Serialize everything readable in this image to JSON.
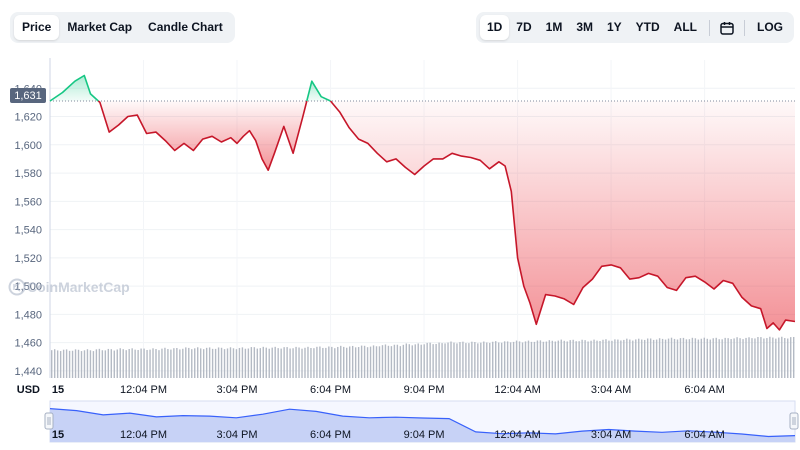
{
  "tabs": [
    {
      "label": "Price",
      "active": true
    },
    {
      "label": "Market Cap",
      "active": false
    },
    {
      "label": "Candle Chart",
      "active": false
    }
  ],
  "ranges": [
    {
      "label": "1D",
      "active": true
    },
    {
      "label": "7D",
      "active": false
    },
    {
      "label": "1M",
      "active": false
    },
    {
      "label": "3M",
      "active": false
    },
    {
      "label": "1Y",
      "active": false
    },
    {
      "label": "YTD",
      "active": false
    },
    {
      "label": "ALL",
      "active": false
    }
  ],
  "log_label": "LOG",
  "calendar_icon": "calendar-icon",
  "watermark": "CoinMarketCap",
  "currency_label": "USD",
  "current_price_label": "1,631",
  "colors": {
    "up": "#16c784",
    "down": "#c6172a",
    "fill_down": "#ea3943",
    "volume": "#b4bac4",
    "navigator_fill": "#c7d2f6",
    "navigator_line": "#3861fb"
  },
  "chart_data": {
    "type": "line",
    "ylabel": "",
    "xlabel": "",
    "ylim": [
      1435,
      1660
    ],
    "baseline": 1631,
    "x_ticks": [
      "15",
      "12:04 PM",
      "3:04 PM",
      "6:04 PM",
      "9:04 PM",
      "12:04 AM",
      "3:04 AM",
      "6:04 AM"
    ],
    "x_tick_hours": [
      0,
      3,
      6,
      9,
      12,
      15,
      18,
      21
    ],
    "y_ticks": [
      {
        "value": 1440,
        "label": "1,440"
      },
      {
        "value": 1460,
        "label": "1,460"
      },
      {
        "value": 1480,
        "label": "1,480"
      },
      {
        "value": 1500,
        "label": "1,500"
      },
      {
        "value": 1520,
        "label": "1,520"
      },
      {
        "value": 1540,
        "label": "1,540"
      },
      {
        "value": 1560,
        "label": "1,560"
      },
      {
        "value": 1580,
        "label": "1,580"
      },
      {
        "value": 1600,
        "label": "1,600"
      },
      {
        "value": 1620,
        "label": "1,620"
      },
      {
        "value": 1640,
        "label": "1,640"
      }
    ],
    "x_range_hours": [
      0,
      23.9
    ],
    "series": [
      {
        "x": [
          0.0,
          0.4,
          0.8,
          1.1,
          1.3,
          1.6,
          1.9,
          2.2,
          2.5,
          2.8,
          3.1,
          3.4,
          3.7,
          4.0,
          4.3,
          4.6,
          4.9,
          5.2,
          5.5,
          5.8,
          6.0,
          6.2,
          6.4,
          6.6,
          6.8,
          7.0,
          7.2,
          7.5,
          7.8,
          8.1,
          8.4,
          8.7,
          9.0,
          9.3,
          9.6,
          9.9,
          10.2,
          10.5,
          10.8,
          11.1,
          11.4,
          11.7,
          12.0,
          12.3,
          12.6,
          12.9,
          13.2,
          13.5,
          13.8,
          14.1,
          14.4,
          14.6,
          14.8,
          15.0,
          15.2,
          15.4,
          15.6,
          15.9,
          16.2,
          16.5,
          16.8,
          17.1,
          17.4,
          17.7,
          18.0,
          18.3,
          18.6,
          18.9,
          19.2,
          19.5,
          19.8,
          20.1,
          20.4,
          20.7,
          21.0,
          21.3,
          21.6,
          21.9,
          22.2,
          22.5,
          22.8,
          23.0,
          23.2,
          23.4,
          23.6,
          23.9
        ],
        "y": [
          1631,
          1637,
          1645,
          1649,
          1636,
          1630,
          1609,
          1614,
          1620,
          1621,
          1608,
          1609,
          1603,
          1596,
          1601,
          1596,
          1604,
          1606,
          1602,
          1605,
          1601,
          1606,
          1610,
          1603,
          1590,
          1582,
          1594,
          1613,
          1594,
          1619,
          1645,
          1634,
          1631,
          1623,
          1612,
          1604,
          1601,
          1594,
          1588,
          1590,
          1584,
          1579,
          1585,
          1590,
          1590,
          1594,
          1592,
          1591,
          1589,
          1583,
          1588,
          1585,
          1567,
          1520,
          1500,
          1488,
          1473,
          1494,
          1493,
          1491,
          1487,
          1499,
          1505,
          1514,
          1515,
          1513,
          1505,
          1506,
          1509,
          1507,
          1499,
          1497,
          1506,
          1507,
          1503,
          1498,
          1504,
          1502,
          1492,
          1486,
          1484,
          1470,
          1474,
          1469,
          1476,
          1475
        ]
      }
    ],
    "volume": [
      0.58,
      0.58,
      0.59,
      0.6,
      0.6,
      0.61,
      0.62,
      0.62,
      0.62,
      0.63,
      0.63,
      0.63,
      0.64,
      0.65,
      0.66,
      0.68,
      0.7,
      0.72,
      0.74,
      0.74,
      0.75,
      0.76,
      0.77,
      0.78,
      0.78,
      0.79,
      0.8,
      0.81,
      0.82,
      0.82,
      0.82,
      0.83,
      0.84,
      0.84
    ],
    "navigator_y": [
      1649,
      1636,
      1609,
      1620,
      1596,
      1604,
      1601,
      1590,
      1613,
      1645,
      1631,
      1601,
      1590,
      1594,
      1589,
      1585,
      1500,
      1488,
      1494,
      1487,
      1505,
      1515,
      1505,
      1497,
      1507,
      1498,
      1486,
      1470,
      1476
    ]
  }
}
